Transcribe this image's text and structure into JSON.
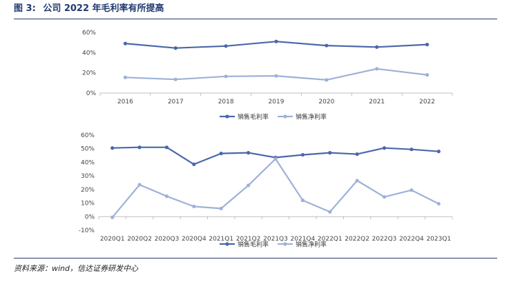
{
  "figure": {
    "label": "图 3:",
    "title": "公司 2022 年毛利率有所提高"
  },
  "source": "资料来源：wind，信达证券研发中心",
  "colors": {
    "gross": "#4a67a8",
    "net": "#9db1d8",
    "axis": "#bfbfbf",
    "text": "#444444"
  },
  "chart_data": [
    {
      "type": "line",
      "title": "",
      "xlabel": "",
      "ylabel": "",
      "categories": [
        "2016",
        "2017",
        "2018",
        "2019",
        "2020",
        "2021",
        "2022"
      ],
      "ylim": [
        0,
        60
      ],
      "yticks": [
        "0%",
        "20%",
        "40%",
        "60%"
      ],
      "grid": false,
      "legend": "bottom",
      "series": [
        {
          "name": "销售毛利率",
          "color": "#4a67a8",
          "values": [
            49,
            44.5,
            46.5,
            51,
            47,
            45.5,
            48
          ]
        },
        {
          "name": "销售净利率",
          "color": "#9db1d8",
          "values": [
            15.5,
            13.5,
            16.5,
            17,
            13,
            24,
            18
          ]
        }
      ]
    },
    {
      "type": "line",
      "title": "",
      "xlabel": "",
      "ylabel": "",
      "categories": [
        "2020Q1",
        "2020Q2",
        "2020Q3",
        "2020Q4",
        "2021Q1",
        "2021Q2",
        "2021Q3",
        "2021Q4",
        "2022Q1",
        "2022Q2",
        "2022Q3",
        "2022Q4",
        "2023Q1"
      ],
      "ylim": [
        -10,
        60
      ],
      "yticks": [
        "-10%",
        "0%",
        "10%",
        "20%",
        "30%",
        "40%",
        "50%",
        "60%"
      ],
      "grid": false,
      "legend": "bottom",
      "series": [
        {
          "name": "销售毛利率",
          "color": "#4a67a8",
          "values": [
            50.5,
            51,
            51,
            38.5,
            46.5,
            47,
            43.5,
            45.5,
            47,
            46,
            50.5,
            49.5,
            48
          ]
        },
        {
          "name": "销售净利率",
          "color": "#9db1d8",
          "values": [
            -0.5,
            23.5,
            15,
            7.5,
            6,
            23,
            42.5,
            12,
            3.5,
            26.5,
            14.5,
            19.5,
            9.5
          ]
        }
      ]
    }
  ]
}
